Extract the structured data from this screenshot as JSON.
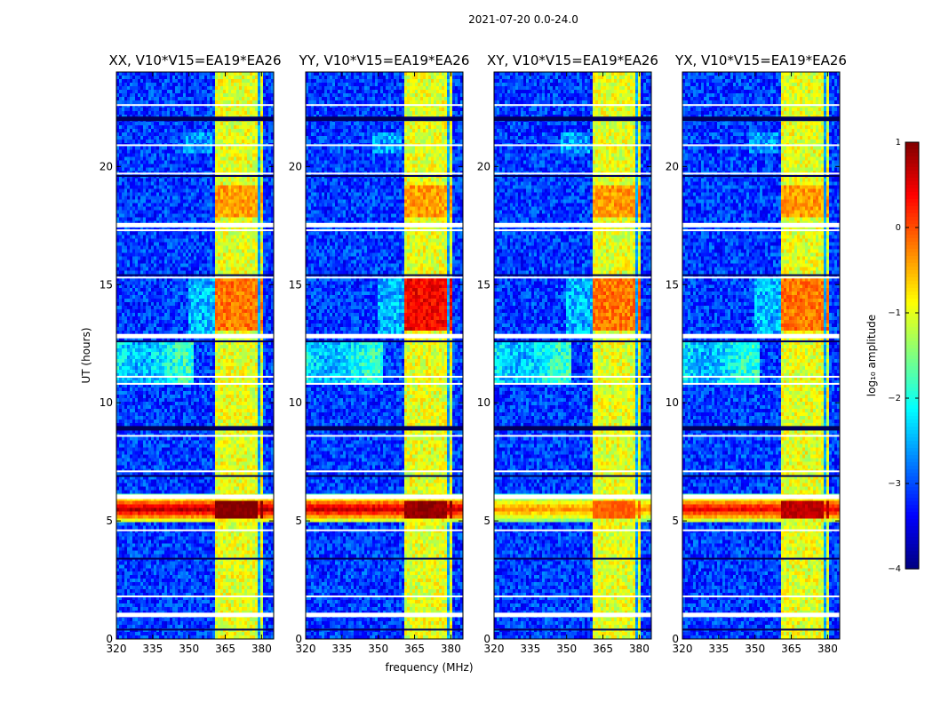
{
  "chart_data": {
    "type": "heatmap",
    "suptitle": "2021-07-20 0.0-24.0",
    "xlabel": "frequency (MHz)",
    "ylabel": "UT (hours)",
    "xlim": [
      320,
      385
    ],
    "ylim": [
      0,
      24
    ],
    "xticks": [
      320,
      335,
      350,
      365,
      380
    ],
    "yticks": [
      0,
      5,
      10,
      15,
      20
    ],
    "panels": [
      {
        "title": "XX, V10*V15=EA19*EA26",
        "burst_peak_log": 0.8,
        "burst_reaches_edge": true
      },
      {
        "title": "YY, V10*V15=EA19*EA26",
        "burst_peak_log": 0.7,
        "burst_reaches_edge": true
      },
      {
        "title": "XY, V10*V15=EA19*EA26",
        "burst_peak_log": -0.3,
        "burst_reaches_edge": true
      },
      {
        "title": "YX, V10*V15=EA19*EA26",
        "burst_peak_log": 0.5,
        "burst_reaches_edge": true
      }
    ],
    "rfi_band_mhz": [
      361,
      381
    ],
    "rfi_channel_mhz": [
      [
        361,
        365
      ],
      [
        365.5,
        369.5
      ],
      [
        370,
        374
      ],
      [
        374.5,
        378.5
      ],
      [
        379,
        381
      ]
    ],
    "burst_ut_hours": [
      4.9,
      6.1
    ],
    "flagged_ut_hours": [
      0.4,
      1.0,
      1.8,
      3.4,
      4.6,
      6.0,
      6.9,
      7.1,
      8.6,
      8.9,
      10.8,
      11.1,
      12.6,
      12.8,
      15.3,
      15.4,
      17.3,
      17.5,
      19.6,
      19.7,
      20.9,
      22.0,
      22.6
    ],
    "colorbar": {
      "label": "log₁₀ amplitude",
      "range": [
        -4,
        1
      ],
      "ticks": [
        "1",
        "0",
        "−1",
        "−2",
        "−3",
        "−4"
      ],
      "tick_values": [
        1,
        0,
        -1,
        -2,
        -3,
        -4
      ]
    }
  }
}
